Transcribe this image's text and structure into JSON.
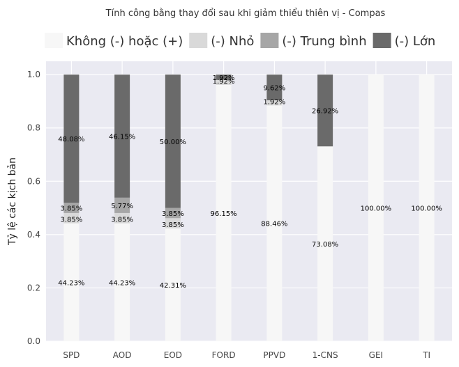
{
  "chart_data": {
    "type": "bar",
    "stacked": true,
    "title": "Tính công bằng thay đổi sau khi giảm thiểu thiên vị - Compas",
    "xlabel": "",
    "ylabel": "Tỷ lệ các kịch bản",
    "ylim": [
      0,
      1.05
    ],
    "yticks": [
      "0.0",
      "0.2",
      "0.4",
      "0.6",
      "0.8",
      "1.0"
    ],
    "grid": true,
    "legend_position": "top",
    "categories": [
      "SPD",
      "AOD",
      "EOD",
      "FORD",
      "PPVD",
      "1-CNS",
      "GEI",
      "TI"
    ],
    "series": [
      {
        "name": "Không (-) hoặc (+)",
        "color": "#f7f7f7",
        "values": [
          0.4423,
          0.4423,
          0.4231,
          0.9615,
          0.8846,
          0.7308,
          1.0,
          1.0
        ],
        "labels": [
          "44.23%",
          "44.23%",
          "42.31%",
          "96.15%",
          "88.46%",
          "73.08%",
          "100.00%",
          "100.00%"
        ]
      },
      {
        "name": "(-) Nhỏ",
        "color": "#d9d9d9",
        "values": [
          0.0385,
          0.0385,
          0.0385,
          0.0192,
          0.0192,
          0.0,
          0.0,
          0.0
        ],
        "labels": [
          "3.85%",
          "3.85%",
          "3.85%",
          "1.92%",
          "1.92%",
          "",
          "",
          ""
        ]
      },
      {
        "name": "(-) Trung bình",
        "color": "#a6a6a6",
        "values": [
          0.0385,
          0.0577,
          0.0385,
          0.0,
          0.0,
          0.0,
          0.0,
          0.0
        ],
        "labels": [
          "3.85%",
          "5.77%",
          "3.85%",
          "",
          "",
          "",
          "",
          ""
        ]
      },
      {
        "name": "(-) Lớn",
        "color": "#6a6a6a",
        "values": [
          0.4808,
          0.4615,
          0.5,
          0.0192,
          0.0962,
          0.2692,
          0.0,
          0.0
        ],
        "labels": [
          "48.08%",
          "46.15%",
          "50.00%",
          "1.92%",
          "9.62%",
          "26.92%",
          "",
          ""
        ]
      }
    ]
  }
}
